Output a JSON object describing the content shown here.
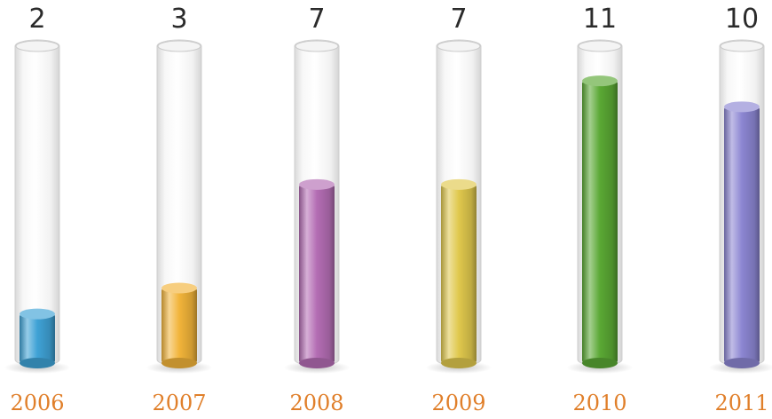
{
  "chart_data": {
    "type": "bar",
    "style": "test-tube cylinders",
    "categories": [
      "2006",
      "2007",
      "2008",
      "2009",
      "2010",
      "2011"
    ],
    "values": [
      2,
      3,
      7,
      7,
      11,
      10
    ],
    "ylim": [
      0,
      12
    ],
    "grid": false,
    "legend": "none",
    "title": "",
    "xlabel": "",
    "ylabel": "",
    "category_label_color": "#e07f2a",
    "value_label_color": "#2b2b2b",
    "bar_colors": [
      "#3fa2d6",
      "#f2b43a",
      "#b46db4",
      "#e0c84d",
      "#5aa834",
      "#8c86d2"
    ]
  }
}
